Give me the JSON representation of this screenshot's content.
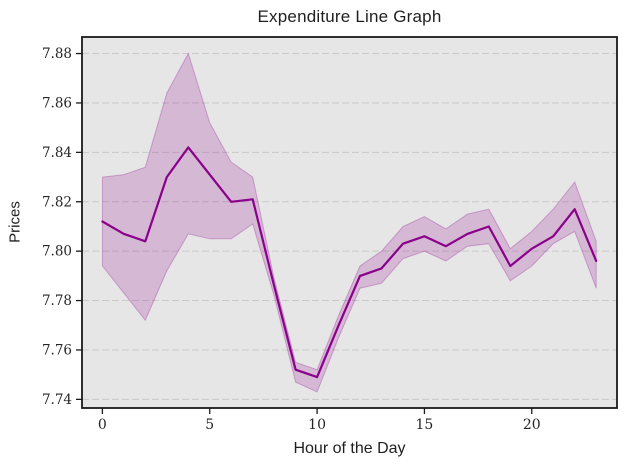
{
  "chart_data": {
    "type": "line",
    "title": "Expenditure Line Graph",
    "xlabel": "Hour of the Day",
    "ylabel": "Prices",
    "x": [
      0,
      1,
      2,
      3,
      4,
      5,
      6,
      7,
      8,
      9,
      10,
      11,
      12,
      13,
      14,
      15,
      16,
      17,
      18,
      19,
      20,
      21,
      22,
      23
    ],
    "series": [
      {
        "name": "price",
        "values": [
          7.812,
          7.807,
          7.804,
          7.83,
          7.842,
          7.831,
          7.82,
          7.821,
          7.786,
          7.752,
          7.749,
          7.77,
          7.79,
          7.793,
          7.803,
          7.806,
          7.802,
          7.807,
          7.81,
          7.794,
          7.801,
          7.806,
          7.817,
          7.796
        ]
      },
      {
        "name": "band_upper",
        "values": [
          7.83,
          7.831,
          7.834,
          7.864,
          7.88,
          7.852,
          7.836,
          7.83,
          7.789,
          7.755,
          7.752,
          7.774,
          7.794,
          7.8,
          7.81,
          7.814,
          7.809,
          7.815,
          7.817,
          7.801,
          7.808,
          7.817,
          7.828,
          7.804
        ]
      },
      {
        "name": "band_lower",
        "values": [
          7.794,
          7.783,
          7.772,
          7.792,
          7.807,
          7.805,
          7.805,
          7.811,
          7.782,
          7.747,
          7.743,
          7.765,
          7.785,
          7.787,
          7.797,
          7.8,
          7.796,
          7.802,
          7.803,
          7.788,
          7.794,
          7.803,
          7.808,
          7.785
        ]
      }
    ],
    "xticks": [
      0,
      5,
      10,
      15,
      20
    ],
    "yticks": [
      7.74,
      7.76,
      7.78,
      7.8,
      7.82,
      7.84,
      7.86,
      7.88
    ],
    "xlim": [
      -0.95,
      23.97
    ],
    "ylim": [
      7.7365,
      7.8867
    ],
    "grid": "horizontal-dashed",
    "legend": "none",
    "colors": {
      "line": "#8b008b",
      "band_fill": "#8b008b",
      "band_opacity": 0.2,
      "plot_bg": "#e6e6e6",
      "grid": "#c9c9c9",
      "spine": "#1a1a1a",
      "text": "#262626"
    }
  }
}
